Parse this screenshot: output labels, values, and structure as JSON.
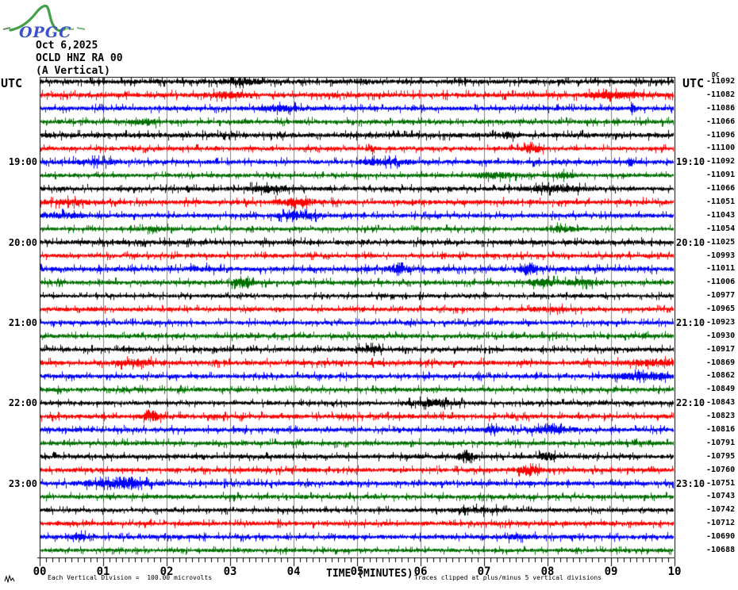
{
  "logo": {
    "text": "OPGC"
  },
  "header": {
    "date": "Oct 6,2025",
    "station": "OCLD HNZ RA 00",
    "component": "(A Vertical)"
  },
  "plot": {
    "utc_left": "UTC",
    "utc_right": "UTC",
    "dc_label": "DC",
    "xlabel": "TIME (MINUTES)",
    "footer_left": "Each Vertical Division =  100.00 microvolts",
    "footer_right": "Traces clipped at plus/minus 5 vertical divisions"
  },
  "colors": {
    "black": "#000000",
    "red": "#ff0000",
    "blue": "#0000ff",
    "green": "#007000",
    "grid": "#808080",
    "logo_green": "#44a048",
    "logo_blue": "#3b52c9"
  },
  "chart_data": {
    "type": "line",
    "subtype": "helicorder seismogram",
    "title": "OCLD HNZ RA 00 (A Vertical) Oct 6,2025",
    "xlabel": "TIME (MINUTES)",
    "x_range_minutes": [
      0,
      10
    ],
    "x_ticks": [
      "00",
      "01",
      "02",
      "03",
      "04",
      "05",
      "06",
      "07",
      "08",
      "09",
      "10"
    ],
    "minutes_per_line": 10,
    "color_cycle": [
      "black",
      "red",
      "blue",
      "green"
    ],
    "rows": [
      {
        "left_time": null,
        "right_time": null,
        "dc": "-11092",
        "color": "black"
      },
      {
        "left_time": null,
        "right_time": null,
        "dc": "-11082",
        "color": "red"
      },
      {
        "left_time": null,
        "right_time": null,
        "dc": "-11086",
        "color": "blue"
      },
      {
        "left_time": null,
        "right_time": null,
        "dc": "-11066",
        "color": "green"
      },
      {
        "left_time": null,
        "right_time": null,
        "dc": "-11096",
        "color": "black"
      },
      {
        "left_time": null,
        "right_time": null,
        "dc": "-11100",
        "color": "red"
      },
      {
        "left_time": "19:00",
        "right_time": "19:10",
        "dc": "-11092",
        "color": "blue"
      },
      {
        "left_time": null,
        "right_time": null,
        "dc": "-11091",
        "color": "green"
      },
      {
        "left_time": null,
        "right_time": null,
        "dc": "-11066",
        "color": "black"
      },
      {
        "left_time": null,
        "right_time": null,
        "dc": "-11051",
        "color": "red"
      },
      {
        "left_time": null,
        "right_time": null,
        "dc": "-11043",
        "color": "blue"
      },
      {
        "left_time": null,
        "right_time": null,
        "dc": "-11054",
        "color": "green"
      },
      {
        "left_time": "20:00",
        "right_time": "20:10",
        "dc": "-11025",
        "color": "black"
      },
      {
        "left_time": null,
        "right_time": null,
        "dc": "-10993",
        "color": "red"
      },
      {
        "left_time": null,
        "right_time": null,
        "dc": "-11011",
        "color": "blue"
      },
      {
        "left_time": null,
        "right_time": null,
        "dc": "-11006",
        "color": "green"
      },
      {
        "left_time": null,
        "right_time": null,
        "dc": "-10977",
        "color": "black"
      },
      {
        "left_time": null,
        "right_time": null,
        "dc": "-10965",
        "color": "red"
      },
      {
        "left_time": "21:00",
        "right_time": "21:10",
        "dc": "-10923",
        "color": "blue"
      },
      {
        "left_time": null,
        "right_time": null,
        "dc": "-10930",
        "color": "green"
      },
      {
        "left_time": null,
        "right_time": null,
        "dc": "-10917",
        "color": "black"
      },
      {
        "left_time": null,
        "right_time": null,
        "dc": "-10869",
        "color": "red"
      },
      {
        "left_time": null,
        "right_time": null,
        "dc": "-10862",
        "color": "blue"
      },
      {
        "left_time": null,
        "right_time": null,
        "dc": "-10849",
        "color": "green"
      },
      {
        "left_time": "22:00",
        "right_time": "22:10",
        "dc": "-10843",
        "color": "black"
      },
      {
        "left_time": null,
        "right_time": null,
        "dc": "-10823",
        "color": "red"
      },
      {
        "left_time": null,
        "right_time": null,
        "dc": "-10816",
        "color": "blue"
      },
      {
        "left_time": null,
        "right_time": null,
        "dc": "-10791",
        "color": "green"
      },
      {
        "left_time": null,
        "right_time": null,
        "dc": "-10795",
        "color": "black"
      },
      {
        "left_time": null,
        "right_time": null,
        "dc": "-10760",
        "color": "red"
      },
      {
        "left_time": "23:00",
        "right_time": "23:10",
        "dc": "-10751",
        "color": "blue"
      },
      {
        "left_time": null,
        "right_time": null,
        "dc": "-10743",
        "color": "green"
      },
      {
        "left_time": null,
        "right_time": null,
        "dc": "-10742",
        "color": "black"
      },
      {
        "left_time": null,
        "right_time": null,
        "dc": "-10712",
        "color": "red"
      },
      {
        "left_time": null,
        "right_time": null,
        "dc": "-10690",
        "color": "blue"
      },
      {
        "left_time": null,
        "right_time": null,
        "dc": "-10688",
        "color": "green"
      }
    ],
    "notable_bursts": [
      {
        "row": 2,
        "minute": 9.35
      },
      {
        "row": 5,
        "minute": 7.75
      },
      {
        "row": 6,
        "minute": 9.3
      },
      {
        "row": 14,
        "minute": 7.7
      },
      {
        "row": 15,
        "minute": 3.2
      },
      {
        "row": 25,
        "minute": 1.75
      },
      {
        "row": 29,
        "minute": 7.7
      }
    ]
  }
}
